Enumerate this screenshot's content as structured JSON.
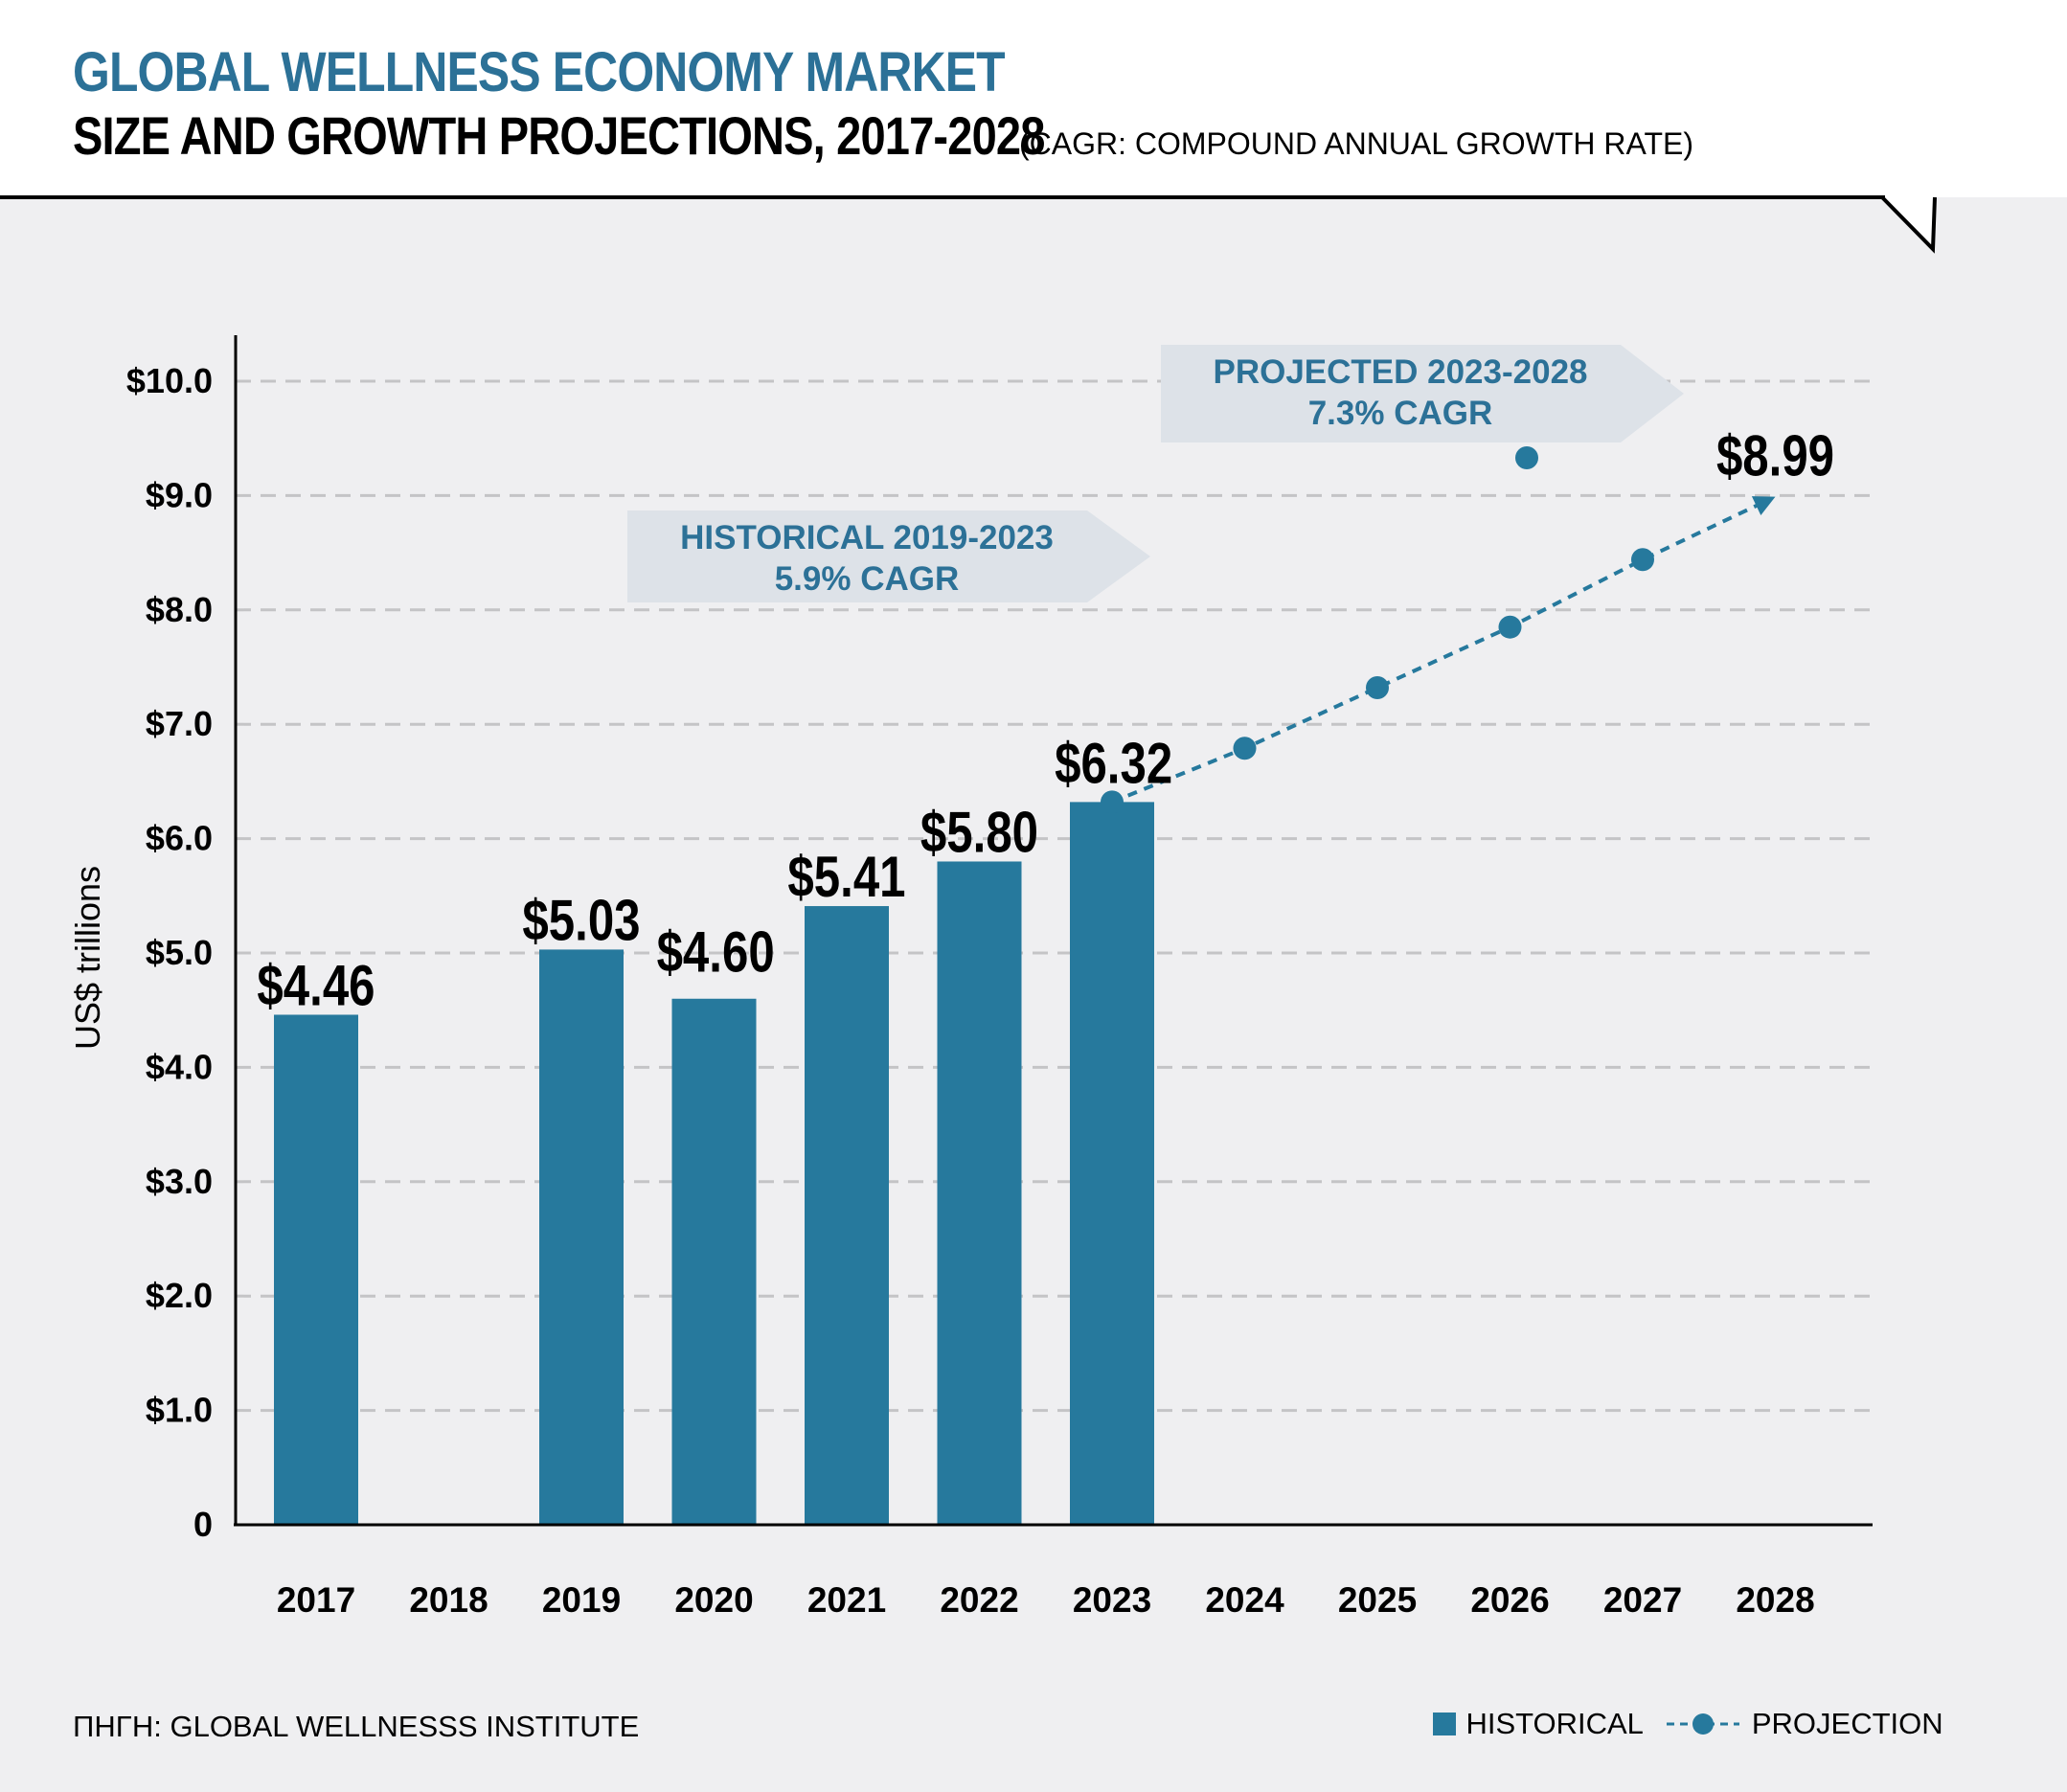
{
  "header": {
    "title": "GLOBAL WELLNESS ECONOMY MARKET",
    "subtitle": "SIZE AND GROWTH PROJECTIONS, 2017-2028",
    "note": "(CAGR: COMPOUND ANNUAL GROWTH RATE)"
  },
  "footer": {
    "source": "ΠΗΓΗ: GLOBAL WELLNESSS INSTITUTE"
  },
  "legend": {
    "historical": "HISTORICAL",
    "projection": "PROJECTION"
  },
  "colors": {
    "bar": "#26799d",
    "accent": "#2c7197",
    "callout_bg": "#dde2e8"
  },
  "chart_data": {
    "type": "bar",
    "ylabel": "US$ trillions",
    "ylim": [
      0,
      10
    ],
    "y_ticks": [
      "0",
      "$1.0",
      "$2.0",
      "$3.0",
      "$4.0",
      "$5.0",
      "$6.0",
      "$7.0",
      "$8.0",
      "$9.0",
      "$10.0"
    ],
    "categories": [
      "2017",
      "2018",
      "2019",
      "2020",
      "2021",
      "2022",
      "2023",
      "2024",
      "2025",
      "2026",
      "2027",
      "2028"
    ],
    "grid": true,
    "series": [
      {
        "name": "HISTORICAL",
        "type": "bar",
        "values": [
          4.46,
          null,
          5.03,
          4.6,
          5.41,
          5.8,
          6.32,
          null,
          null,
          null,
          null,
          null
        ],
        "labels": [
          "$4.46",
          "",
          "$5.03",
          "$4.60",
          "$5.41",
          "$5.80",
          "$6.32",
          "",
          "",
          "",
          "",
          ""
        ]
      },
      {
        "name": "PROJECTION",
        "type": "line",
        "values": [
          null,
          null,
          null,
          null,
          null,
          null,
          6.32,
          6.79,
          7.32,
          7.85,
          8.44,
          8.99
        ],
        "end_label": "$8.99"
      }
    ],
    "annotations": [
      {
        "text": [
          "HISTORICAL 2019-2023",
          "5.9% CAGR"
        ]
      },
      {
        "text": [
          "PROJECTED 2023-2028",
          "7.3% CAGR"
        ]
      }
    ]
  }
}
